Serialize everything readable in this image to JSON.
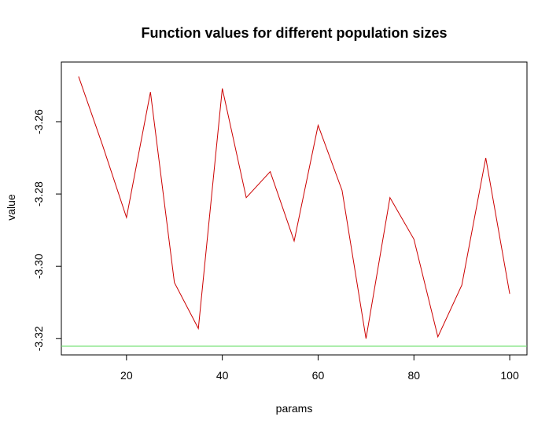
{
  "chart_data": {
    "type": "line",
    "title": "Function values for different population sizes",
    "xlabel": "params",
    "ylabel": "value",
    "xlim": [
      6.4,
      103.6
    ],
    "ylim": [
      -3.3245,
      -3.2435
    ],
    "xticks": [
      20,
      40,
      60,
      80,
      100
    ],
    "xtick_labels": [
      "20",
      "40",
      "60",
      "80",
      "100"
    ],
    "yticks": [
      -3.26,
      -3.28,
      -3.3,
      -3.32
    ],
    "ytick_labels": [
      "-3.26",
      "-3.28",
      "-3.30",
      "-3.32"
    ],
    "grid": false,
    "legend": "none",
    "series": [
      {
        "color": "#cc0000",
        "x": [
          10,
          15,
          20,
          25,
          30,
          35,
          40,
          45,
          50,
          55,
          60,
          65,
          70,
          75,
          80,
          85,
          90,
          95,
          100
        ],
        "y": [
          -3.2475,
          -3.2665,
          -3.2865,
          -3.2518,
          -3.3045,
          -3.3172,
          -3.2508,
          -3.281,
          -3.2738,
          -3.293,
          -3.261,
          -3.279,
          -3.32,
          -3.281,
          -3.2925,
          -3.3195,
          -3.3052,
          -3.27,
          -3.3076
        ]
      }
    ],
    "hlines": [
      {
        "y": -3.3221,
        "color": "#66dd66"
      }
    ]
  }
}
